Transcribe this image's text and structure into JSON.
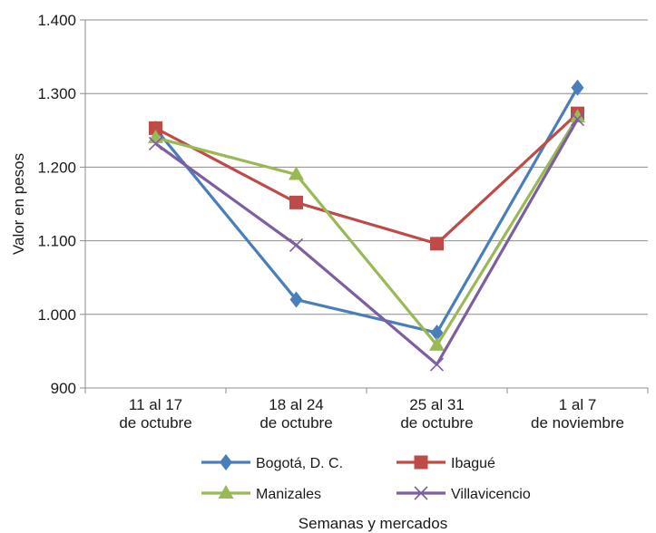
{
  "chart_data": {
    "type": "line",
    "title": "",
    "xlabel": "Semanas y mercados",
    "ylabel": "Valor en pesos",
    "ylim": [
      900,
      1400
    ],
    "ytick_step": 100,
    "ytick_labels": [
      "900",
      "1.000",
      "1.100",
      "1.200",
      "1.300",
      "1.400"
    ],
    "categories": [
      [
        "11 al 17",
        "de octubre"
      ],
      [
        "18 al 24",
        "de octubre"
      ],
      [
        "25 al 31",
        "de octubre"
      ],
      [
        "1 al 7",
        "de noviembre"
      ]
    ],
    "grid": true,
    "legend_position": "bottom",
    "series": [
      {
        "name": "Bogotá, D. C.",
        "values": [
          1252,
          1020,
          975,
          1308
        ],
        "color": "#4a7ebb",
        "marker": "diamond"
      },
      {
        "name": "Ibagué",
        "values": [
          1253,
          1152,
          1096,
          1273
        ],
        "color": "#be4b48",
        "marker": "square"
      },
      {
        "name": "Manizales",
        "values": [
          1240,
          1190,
          958,
          1268
        ],
        "color": "#98b954",
        "marker": "triangle"
      },
      {
        "name": "Villavicencio",
        "values": [
          1232,
          1094,
          932,
          1265
        ],
        "color": "#7d5fa0",
        "marker": "x"
      }
    ]
  }
}
